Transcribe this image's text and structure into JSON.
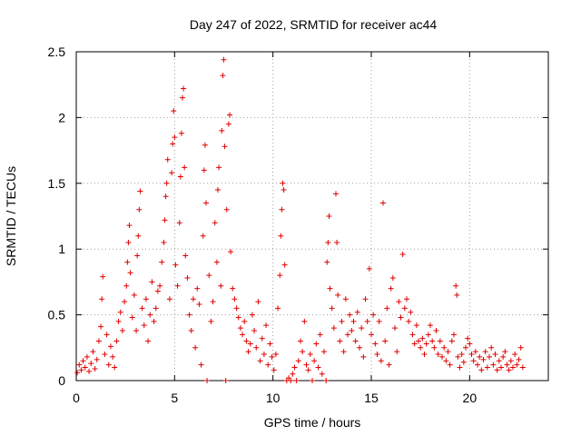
{
  "chart_data": {
    "type": "scatter",
    "title": "Day 247 of 2022, SRMTID for receiver ac44",
    "xlabel": "GPS time / hours",
    "ylabel": "SRMTID / TECUs",
    "xlim": [
      0,
      24
    ],
    "ylim": [
      0,
      2.5
    ],
    "xticks": [
      0,
      5,
      10,
      15,
      20
    ],
    "xtick_labels": [
      "0",
      "5",
      "10",
      "15",
      "20"
    ],
    "yticks": [
      0,
      0.5,
      1,
      1.5,
      2,
      2.5
    ],
    "ytick_labels": [
      "0",
      "0.5",
      "1",
      "1.5",
      "2",
      "2.5"
    ],
    "grid": true,
    "marker": "+",
    "series": [
      {
        "name": "SRMTID",
        "color": "#e00000",
        "points": [
          [
            0.05,
            0.06
          ],
          [
            0.15,
            0.12
          ],
          [
            0.25,
            0.08
          ],
          [
            0.35,
            0.15
          ],
          [
            0.45,
            0.1
          ],
          [
            0.55,
            0.18
          ],
          [
            0.65,
            0.07
          ],
          [
            0.75,
            0.13
          ],
          [
            0.85,
            0.22
          ],
          [
            0.95,
            0.09
          ],
          [
            1.05,
            0.16
          ],
          [
            1.15,
            0.3
          ],
          [
            1.25,
            0.41
          ],
          [
            1.3,
            0.62
          ],
          [
            1.35,
            0.79
          ],
          [
            1.45,
            0.2
          ],
          [
            1.55,
            0.35
          ],
          [
            1.65,
            0.12
          ],
          [
            1.75,
            0.26
          ],
          [
            1.85,
            0.18
          ],
          [
            1.95,
            0.1
          ],
          [
            2.05,
            0.3
          ],
          [
            2.15,
            0.45
          ],
          [
            2.25,
            0.52
          ],
          [
            2.35,
            0.38
          ],
          [
            2.45,
            0.6
          ],
          [
            2.55,
            0.72
          ],
          [
            2.6,
            0.9
          ],
          [
            2.65,
            1.05
          ],
          [
            2.7,
            1.18
          ],
          [
            2.75,
            0.82
          ],
          [
            2.85,
            0.48
          ],
          [
            2.95,
            0.65
          ],
          [
            3.05,
            0.38
          ],
          [
            3.1,
            0.95
          ],
          [
            3.15,
            1.1
          ],
          [
            3.2,
            1.3
          ],
          [
            3.25,
            1.44
          ],
          [
            3.35,
            0.55
          ],
          [
            3.45,
            0.42
          ],
          [
            3.55,
            0.62
          ],
          [
            3.65,
            0.3
          ],
          [
            3.75,
            0.5
          ],
          [
            3.85,
            0.75
          ],
          [
            3.95,
            0.45
          ],
          [
            4.05,
            0.55
          ],
          [
            4.15,
            0.68
          ],
          [
            4.25,
            0.72
          ],
          [
            4.35,
            0.9
          ],
          [
            4.45,
            1.05
          ],
          [
            4.5,
            1.22
          ],
          [
            4.55,
            1.4
          ],
          [
            4.6,
            1.5
          ],
          [
            4.65,
            1.68
          ],
          [
            4.75,
            0.62
          ],
          [
            4.85,
            1.58
          ],
          [
            4.9,
            1.8
          ],
          [
            4.95,
            2.05
          ],
          [
            5.0,
            1.85
          ],
          [
            5.05,
            0.88
          ],
          [
            5.15,
            0.72
          ],
          [
            5.25,
            1.2
          ],
          [
            5.3,
            1.55
          ],
          [
            5.35,
            1.88
          ],
          [
            5.4,
            2.15
          ],
          [
            5.45,
            2.22
          ],
          [
            5.5,
            1.62
          ],
          [
            5.55,
            0.95
          ],
          [
            5.65,
            0.78
          ],
          [
            5.75,
            0.5
          ],
          [
            5.85,
            0.38
          ],
          [
            5.95,
            0.62
          ],
          [
            6.05,
            0.25
          ],
          [
            6.15,
            0.7
          ],
          [
            6.25,
            0.58
          ],
          [
            6.35,
            0.12
          ],
          [
            6.45,
            1.1
          ],
          [
            6.5,
            1.6
          ],
          [
            6.55,
            1.79
          ],
          [
            6.6,
            1.35
          ],
          [
            6.65,
            0.0
          ],
          [
            6.75,
            0.8
          ],
          [
            6.85,
            0.45
          ],
          [
            6.95,
            0.6
          ],
          [
            7.05,
            1.2
          ],
          [
            7.15,
            0.9
          ],
          [
            7.2,
            1.45
          ],
          [
            7.25,
            1.62
          ],
          [
            7.35,
            0.72
          ],
          [
            7.4,
            1.9
          ],
          [
            7.45,
            2.32
          ],
          [
            7.5,
            2.44
          ],
          [
            7.55,
            1.78
          ],
          [
            7.6,
            0.0
          ],
          [
            7.65,
            1.3
          ],
          [
            7.75,
            1.95
          ],
          [
            7.8,
            2.02
          ],
          [
            7.85,
            0.98
          ],
          [
            7.95,
            0.7
          ],
          [
            8.05,
            0.62
          ],
          [
            8.15,
            0.55
          ],
          [
            8.25,
            0.48
          ],
          [
            8.35,
            0.4
          ],
          [
            8.45,
            0.35
          ],
          [
            8.55,
            0.45
          ],
          [
            8.65,
            0.3
          ],
          [
            8.75,
            0.22
          ],
          [
            8.85,
            0.28
          ],
          [
            8.95,
            0.5
          ],
          [
            9.05,
            0.38
          ],
          [
            9.15,
            0.25
          ],
          [
            9.25,
            0.6
          ],
          [
            9.35,
            0.15
          ],
          [
            9.45,
            0.32
          ],
          [
            9.55,
            0.2
          ],
          [
            9.65,
            0.42
          ],
          [
            9.75,
            0.12
          ],
          [
            9.85,
            0.28
          ],
          [
            9.95,
            0.18
          ],
          [
            10.05,
            0.08
          ],
          [
            10.15,
            0.2
          ],
          [
            10.25,
            0.55
          ],
          [
            10.35,
            0.8
          ],
          [
            10.4,
            1.1
          ],
          [
            10.45,
            1.3
          ],
          [
            10.5,
            1.5
          ],
          [
            10.55,
            1.45
          ],
          [
            10.6,
            0.88
          ],
          [
            10.7,
            0.0
          ],
          [
            10.8,
            0.02
          ],
          [
            10.9,
            0.0
          ],
          [
            11.0,
            0.05
          ],
          [
            11.1,
            0.1
          ],
          [
            11.2,
            0.0
          ],
          [
            11.3,
            0.15
          ],
          [
            11.4,
            0.3
          ],
          [
            11.5,
            0.22
          ],
          [
            11.6,
            0.45
          ],
          [
            11.7,
            0.12
          ],
          [
            11.8,
            0.08
          ],
          [
            11.9,
            0.2
          ],
          [
            12.0,
            0.0
          ],
          [
            12.1,
            0.15
          ],
          [
            12.2,
            0.28
          ],
          [
            12.3,
            0.1
          ],
          [
            12.4,
            0.35
          ],
          [
            12.5,
            0.05
          ],
          [
            12.6,
            0.22
          ],
          [
            12.7,
            0.0
          ],
          [
            12.75,
            0.9
          ],
          [
            12.8,
            1.05
          ],
          [
            12.85,
            1.25
          ],
          [
            12.9,
            0.7
          ],
          [
            13.0,
            0.55
          ],
          [
            13.1,
            0.4
          ],
          [
            13.2,
            1.42
          ],
          [
            13.25,
            1.05
          ],
          [
            13.3,
            0.65
          ],
          [
            13.4,
            0.3
          ],
          [
            13.5,
            0.45
          ],
          [
            13.6,
            0.22
          ],
          [
            13.7,
            0.62
          ],
          [
            13.8,
            0.35
          ],
          [
            13.9,
            0.5
          ],
          [
            14.0,
            0.38
          ],
          [
            14.1,
            0.45
          ],
          [
            14.2,
            0.3
          ],
          [
            14.3,
            0.52
          ],
          [
            14.4,
            0.25
          ],
          [
            14.5,
            0.4
          ],
          [
            14.6,
            0.18
          ],
          [
            14.7,
            0.62
          ],
          [
            14.8,
            0.45
          ],
          [
            14.9,
            0.85
          ],
          [
            15.0,
            0.35
          ],
          [
            15.1,
            0.5
          ],
          [
            15.2,
            0.28
          ],
          [
            15.3,
            0.2
          ],
          [
            15.4,
            0.45
          ],
          [
            15.5,
            0.15
          ],
          [
            15.6,
            1.35
          ],
          [
            15.7,
            0.3
          ],
          [
            15.8,
            0.55
          ],
          [
            15.9,
            0.12
          ],
          [
            16.0,
            0.7
          ],
          [
            16.1,
            0.78
          ],
          [
            16.2,
            0.4
          ],
          [
            16.3,
            0.22
          ],
          [
            16.4,
            0.6
          ],
          [
            16.5,
            0.48
          ],
          [
            16.6,
            0.96
          ],
          [
            16.7,
            0.55
          ],
          [
            16.8,
            0.62
          ],
          [
            16.9,
            0.45
          ],
          [
            17.0,
            0.52
          ],
          [
            17.1,
            0.35
          ],
          [
            17.2,
            0.28
          ],
          [
            17.3,
            0.42
          ],
          [
            17.4,
            0.3
          ],
          [
            17.5,
            0.25
          ],
          [
            17.6,
            0.32
          ],
          [
            17.7,
            0.2
          ],
          [
            17.8,
            0.28
          ],
          [
            17.9,
            0.35
          ],
          [
            18.0,
            0.42
          ],
          [
            18.1,
            0.3
          ],
          [
            18.2,
            0.25
          ],
          [
            18.3,
            0.38
          ],
          [
            18.4,
            0.2
          ],
          [
            18.5,
            0.3
          ],
          [
            18.6,
            0.18
          ],
          [
            18.7,
            0.25
          ],
          [
            18.8,
            0.15
          ],
          [
            18.9,
            0.22
          ],
          [
            19.0,
            0.12
          ],
          [
            19.1,
            0.3
          ],
          [
            19.2,
            0.35
          ],
          [
            19.3,
            0.72
          ],
          [
            19.35,
            0.65
          ],
          [
            19.4,
            0.18
          ],
          [
            19.5,
            0.1
          ],
          [
            19.6,
            0.2
          ],
          [
            19.7,
            0.14
          ],
          [
            19.8,
            0.25
          ],
          [
            19.9,
            0.32
          ],
          [
            20.0,
            0.28
          ],
          [
            20.1,
            0.2
          ],
          [
            20.2,
            0.15
          ],
          [
            20.3,
            0.22
          ],
          [
            20.4,
            0.12
          ],
          [
            20.5,
            0.18
          ],
          [
            20.6,
            0.08
          ],
          [
            20.7,
            0.16
          ],
          [
            20.8,
            0.22
          ],
          [
            20.9,
            0.1
          ],
          [
            21.0,
            0.18
          ],
          [
            21.1,
            0.25
          ],
          [
            21.2,
            0.12
          ],
          [
            21.3,
            0.2
          ],
          [
            21.4,
            0.08
          ],
          [
            21.5,
            0.15
          ],
          [
            21.6,
            0.1
          ],
          [
            21.7,
            0.18
          ],
          [
            21.8,
            0.22
          ],
          [
            21.9,
            0.12
          ],
          [
            22.0,
            0.08
          ],
          [
            22.1,
            0.15
          ],
          [
            22.2,
            0.1
          ],
          [
            22.3,
            0.2
          ],
          [
            22.4,
            0.12
          ],
          [
            22.5,
            0.16
          ],
          [
            22.6,
            0.25
          ],
          [
            22.7,
            0.1
          ]
        ]
      }
    ]
  }
}
